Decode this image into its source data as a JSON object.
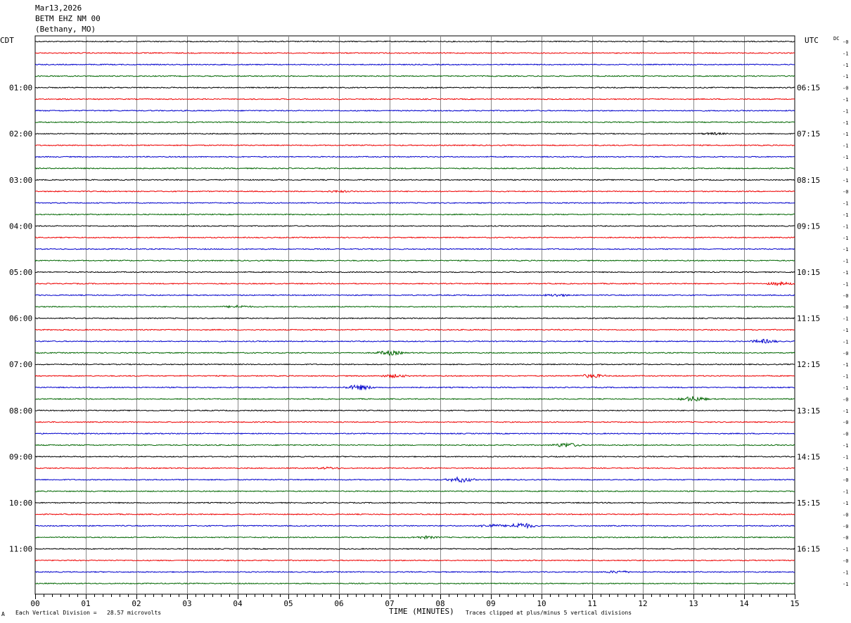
{
  "header": {
    "date": "Mar13,2026",
    "station": "BETM EHZ NM 00",
    "location": "(Bethany, MO)"
  },
  "labels": {
    "left_tz": "CDT",
    "right_tz": "UTC",
    "dc": "DC",
    "x_axis_title": "TIME (MINUTES)",
    "scale_note": "Each Vertical Division =   28.57 microvolts",
    "clip_note": "Traces clipped at plus/minus 5 vertical divisions",
    "corner_mark": "A"
  },
  "colors": {
    "trace_cycle": [
      "#000000",
      "#ee0000",
      "#0000cc",
      "#006600"
    ],
    "grid": "#888888"
  },
  "chart_data": {
    "type": "helicorder",
    "x_ticks": [
      "00",
      "01",
      "02",
      "03",
      "04",
      "05",
      "06",
      "07",
      "08",
      "09",
      "10",
      "11",
      "12",
      "13",
      "14",
      "15"
    ],
    "xlim": [
      0,
      15
    ],
    "minutes_per_trace": 15,
    "trace_count": 48,
    "hour_labels_left": [
      "01:00",
      "02:00",
      "03:00",
      "04:00",
      "05:00",
      "06:00",
      "07:00",
      "08:00",
      "09:00",
      "10:00",
      "11:00"
    ],
    "hour_labels_right": [
      "06:15",
      "07:15",
      "08:15",
      "09:15",
      "10:15",
      "11:15",
      "12:15",
      "13:15",
      "14:15",
      "15:15",
      "16:15"
    ],
    "dc_offsets": [
      "-0",
      "-1",
      "-1",
      "-1",
      "-0",
      "-1",
      "-1",
      "-1",
      "-1",
      "-1",
      "-1",
      "-1",
      "-1",
      "-0",
      "-1",
      "-1",
      "-1",
      "-1",
      "-1",
      "-1",
      "-1",
      "-1",
      "-0",
      "-0",
      "-1",
      "-1",
      "-1",
      "-0",
      "-1",
      "-1",
      "-1",
      "-0",
      "-1",
      "-0",
      "-0",
      "-1",
      "-1",
      "-1",
      "-0",
      "-1",
      "-1",
      "-0",
      "-0",
      "-0",
      "-1",
      "-0",
      "-1",
      "-1"
    ],
    "events": [
      {
        "trace": 8,
        "minute": 13.4,
        "amp": 1.2
      },
      {
        "trace": 13,
        "minute": 6.0,
        "amp": 1.0
      },
      {
        "trace": 21,
        "minute": 14.7,
        "amp": 2.0
      },
      {
        "trace": 22,
        "minute": 10.3,
        "amp": 1.5
      },
      {
        "trace": 23,
        "minute": 4.0,
        "amp": 1.5
      },
      {
        "trace": 26,
        "minute": 14.4,
        "amp": 2.5
      },
      {
        "trace": 27,
        "minute": 7.0,
        "amp": 3.0
      },
      {
        "trace": 29,
        "minute": 7.1,
        "amp": 2.0
      },
      {
        "trace": 29,
        "minute": 11.0,
        "amp": 2.5
      },
      {
        "trace": 30,
        "minute": 6.4,
        "amp": 3.5
      },
      {
        "trace": 31,
        "minute": 13.0,
        "amp": 3.5
      },
      {
        "trace": 35,
        "minute": 10.5,
        "amp": 3.0
      },
      {
        "trace": 37,
        "minute": 5.8,
        "amp": 1.2
      },
      {
        "trace": 38,
        "minute": 8.4,
        "amp": 3.5
      },
      {
        "trace": 42,
        "minute": 9.6,
        "amp": 4.0
      },
      {
        "trace": 42,
        "minute": 9.0,
        "amp": 2.0
      },
      {
        "trace": 43,
        "minute": 7.7,
        "amp": 1.5
      },
      {
        "trace": 46,
        "minute": 11.5,
        "amp": 1.5
      }
    ]
  }
}
